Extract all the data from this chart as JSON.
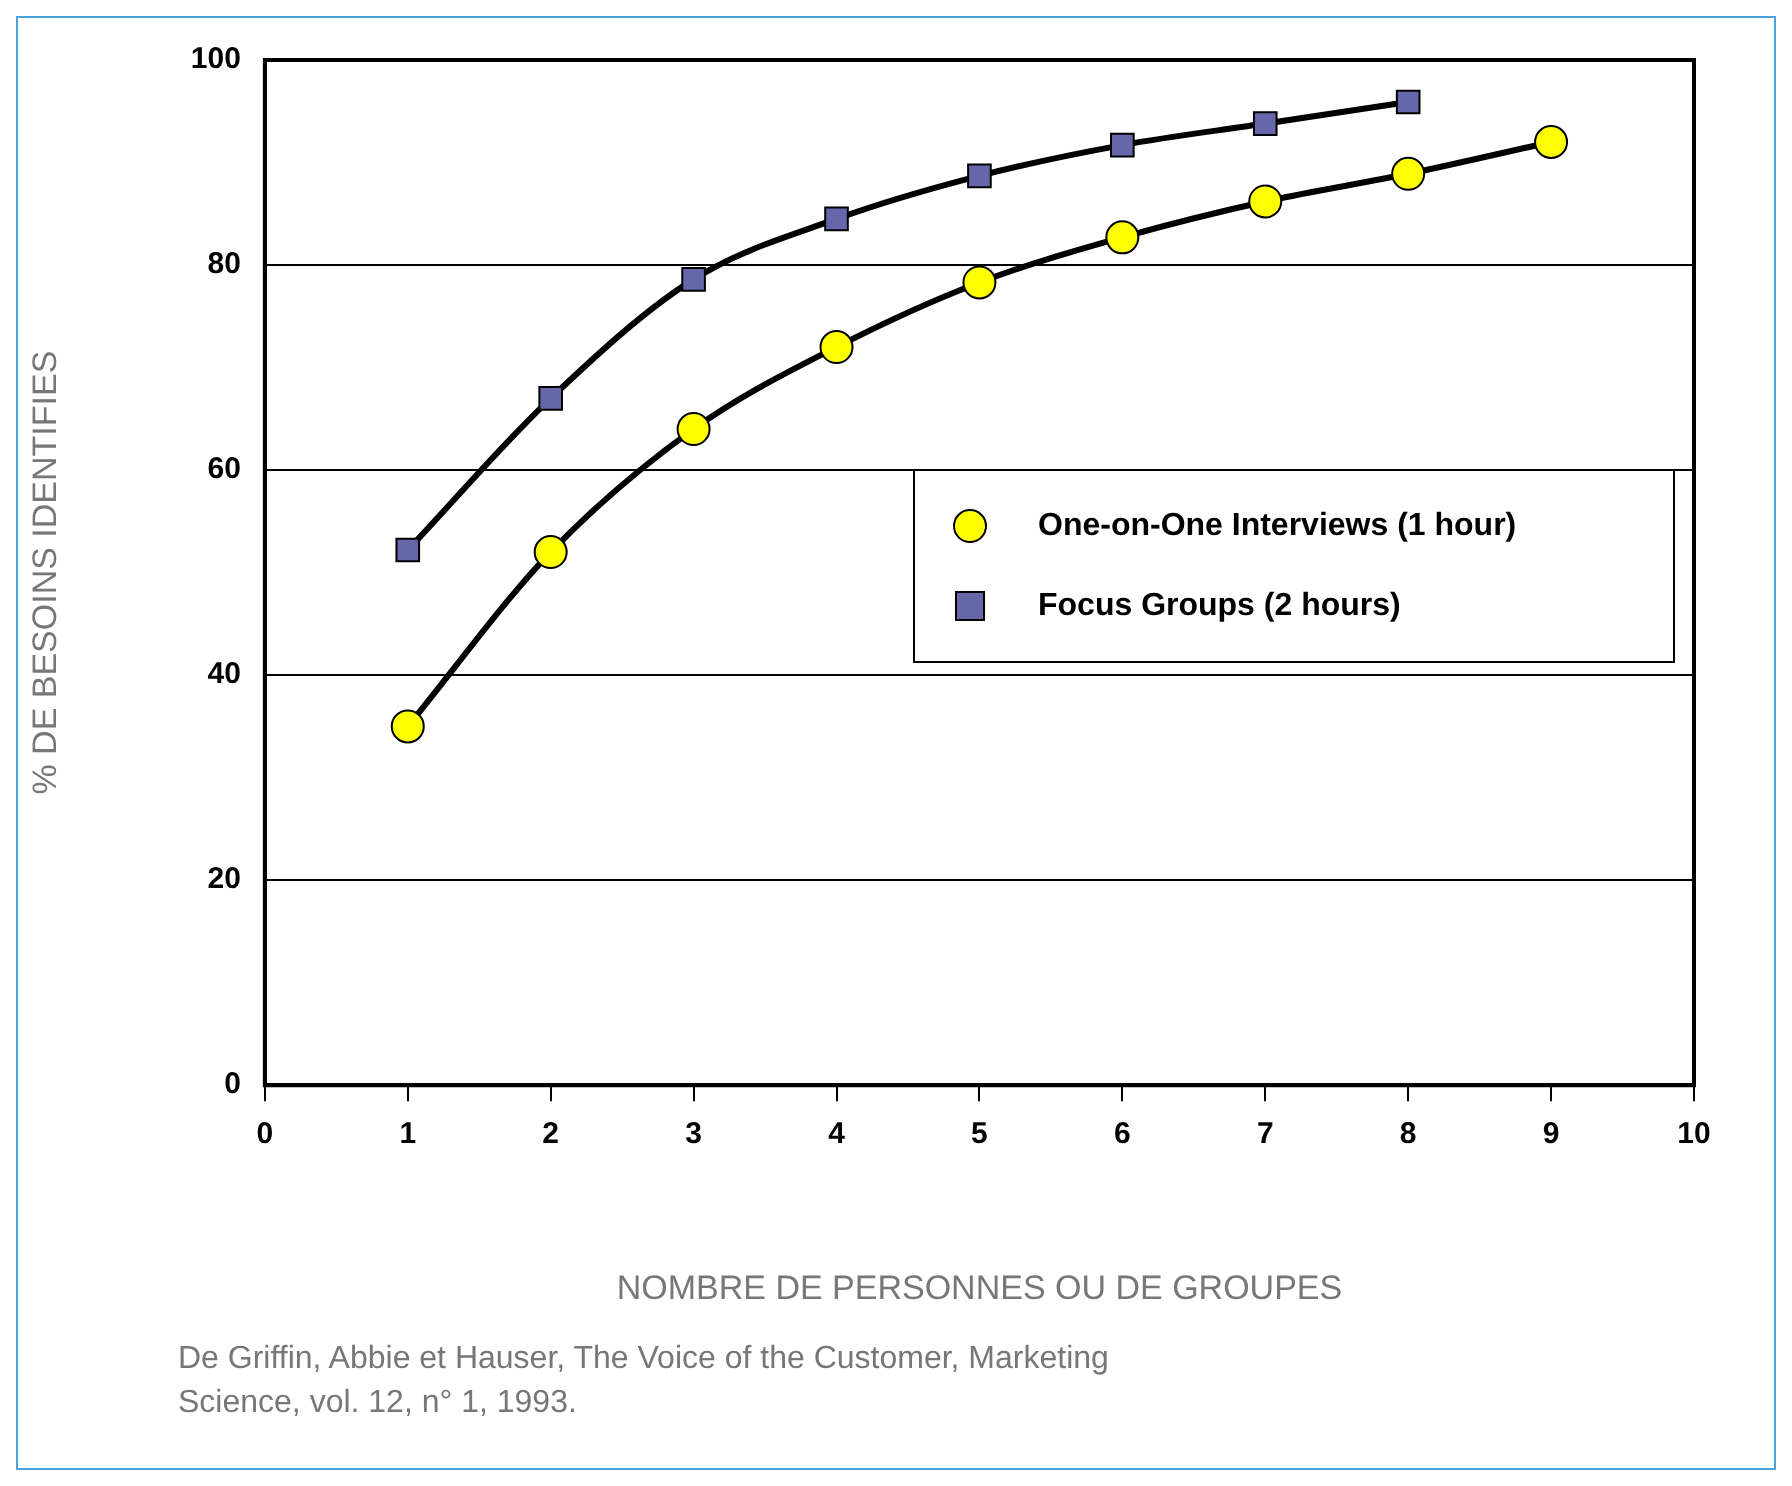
{
  "chart_data": {
    "type": "line",
    "xlabel": "NOMBRE DE PERSONNES OU DE GROUPES",
    "ylabel": "% DE BESOINS IDENTIFIES",
    "x": [
      1,
      2,
      3,
      4,
      5,
      6,
      7,
      8,
      9
    ],
    "series": [
      {
        "name": "One-on-One Interviews (1 hour)",
        "color": "#ffff00",
        "marker": "circle",
        "values": [
          35,
          52,
          64,
          72,
          78.3,
          82.7,
          86.2,
          88.9,
          92
        ]
      },
      {
        "name": "Focus Groups (2 hours)",
        "color": "#6666aa",
        "marker": "square",
        "values": [
          52.2,
          67,
          78.6,
          84.5,
          88.7,
          91.7,
          93.8,
          95.9,
          null
        ]
      }
    ],
    "xlim": [
      0,
      10
    ],
    "xticks": [
      0,
      1,
      2,
      3,
      4,
      5,
      6,
      7,
      8,
      9,
      10
    ],
    "ylim": [
      0,
      100
    ],
    "yticks": [
      0,
      20,
      40,
      60,
      80,
      100
    ],
    "grid": "y",
    "legend": "right",
    "annotations": [
      "De Griffin, Abbie et Hauser, The Voice of the Customer, Marketing Science, vol. 12, n° 1, 1993."
    ]
  }
}
